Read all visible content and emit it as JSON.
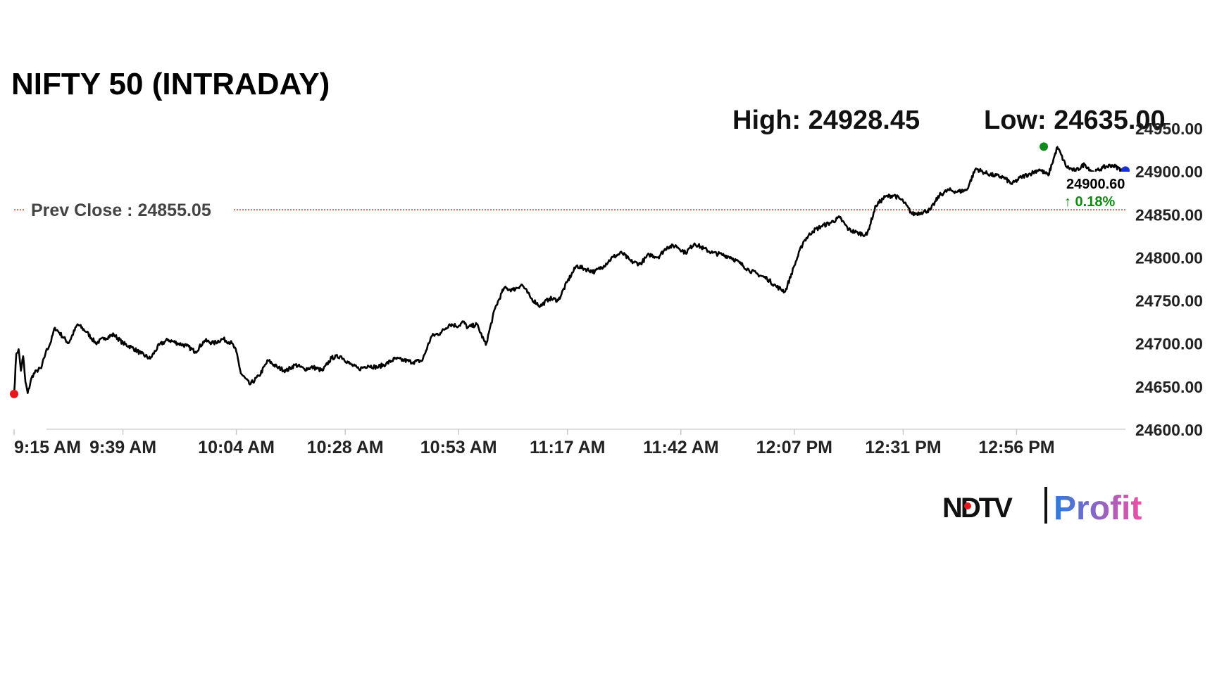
{
  "colors": {
    "line": "#000000",
    "prev_close_line": "#c0392b",
    "open_marker": "#e8161b",
    "high_marker": "#0f8a1e",
    "last_marker": "#1a2fd1",
    "change_positive": "#118a11",
    "logo_profit_start": "#2a7be0",
    "logo_profit_end": "#ef4fa6"
  },
  "header": {
    "high_text": "High: 24928.45",
    "low_text": "Low: 24635.00"
  },
  "prev_close": {
    "label": "Prev Close : 24855.05",
    "value": 24855.05
  },
  "last": {
    "value_text": "24900.60",
    "change_text": "↑ 0.18%",
    "value": 24900.6
  },
  "logo": {
    "ndtv": "NDTV",
    "profit": "Profit"
  },
  "chart_data": {
    "type": "line",
    "title": "NIFTY 50 (INTRADAY)",
    "xlabel": "",
    "ylabel": "",
    "ylim": [
      24600,
      24950
    ],
    "y_ticks": [
      "24950.00",
      "24900.00",
      "24850.00",
      "24800.00",
      "24750.00",
      "24700.00",
      "24650.00",
      "24600.00"
    ],
    "x_ticks": [
      "9:15 AM",
      "9:39 AM",
      "10:04 AM",
      "10:28 AM",
      "10:53 AM",
      "11:17 AM",
      "11:42 AM",
      "12:07 PM",
      "12:31 PM",
      "12:56 PM"
    ],
    "x_tick_minutes": [
      0,
      24,
      49,
      73,
      98,
      122,
      147,
      172,
      196,
      221
    ],
    "x_range_minutes": [
      0,
      245
    ],
    "grid": false,
    "series": [
      {
        "minutes": [
          0,
          0.5,
          1,
          1.5,
          2,
          2.5,
          3,
          4,
          5,
          6,
          7,
          8,
          9,
          10,
          12,
          14,
          16,
          18,
          20,
          22,
          24,
          26,
          28,
          30,
          32,
          34,
          36,
          38,
          40,
          42,
          44,
          46,
          48,
          49,
          50,
          52,
          54,
          56,
          58,
          60,
          62,
          64,
          66,
          68,
          70,
          72,
          74,
          76,
          78,
          80,
          82,
          84,
          86,
          88,
          90,
          92,
          94,
          96,
          98,
          99,
          100,
          102,
          104,
          106,
          108,
          110,
          112,
          114,
          116,
          118,
          120,
          122,
          124,
          126,
          128,
          130,
          132,
          134,
          136,
          138,
          140,
          142,
          144,
          146,
          148,
          150,
          152,
          154,
          156,
          158,
          160,
          162,
          164,
          166,
          168,
          170,
          172,
          174,
          176,
          178,
          180,
          182,
          184,
          186,
          188,
          190,
          192,
          194,
          196,
          198,
          200,
          202,
          204,
          206,
          208,
          210,
          212,
          214,
          216,
          218,
          220,
          222,
          224,
          226,
          228,
          230,
          232,
          234,
          236,
          238,
          240,
          242,
          244,
          245
        ],
        "values": [
          24641,
          24688,
          24693,
          24668,
          24685,
          24655,
          24642,
          24662,
          24668,
          24671,
          24690,
          24700,
          24718,
          24712,
          24700,
          24722,
          24713,
          24700,
          24706,
          24710,
          24700,
          24695,
          24688,
          24682,
          24698,
          24704,
          24700,
          24697,
          24690,
          24703,
          24700,
          24705,
          24700,
          24690,
          24665,
          24652,
          24662,
          24680,
          24672,
          24668,
          24675,
          24670,
          24672,
          24668,
          24683,
          24685,
          24676,
          24670,
          24674,
          24672,
          24676,
          24682,
          24680,
          24678,
          24680,
          24708,
          24712,
          24722,
          24720,
          24725,
          24718,
          24722,
          24698,
          24740,
          24764,
          24762,
          24768,
          24752,
          24743,
          24752,
          24750,
          24772,
          24790,
          24786,
          24783,
          24790,
          24800,
          24805,
          24795,
          24792,
          24803,
          24800,
          24812,
          24813,
          24805,
          24816,
          24810,
          24805,
          24803,
          24800,
          24793,
          24785,
          24780,
          24775,
          24766,
          24760,
          24790,
          24818,
          24830,
          24836,
          24840,
          24846,
          24832,
          24828,
          24826,
          24860,
          24870,
          24872,
          24865,
          24850,
          24852,
          24855,
          24872,
          24878,
          24876,
          24878,
          24903,
          24898,
          24895,
          24893,
          24885,
          24893,
          24897,
          24902,
          24895,
          24928,
          24905,
          24900,
          24908,
          24898,
          24904,
          24907,
          24902,
          24900.6
        ]
      }
    ],
    "markers": [
      {
        "name": "open",
        "minute": 0,
        "value": 24641
      },
      {
        "name": "day-high",
        "minute": 227,
        "value": 24928.45
      },
      {
        "name": "last",
        "minute": 245,
        "value": 24900.6
      }
    ]
  }
}
